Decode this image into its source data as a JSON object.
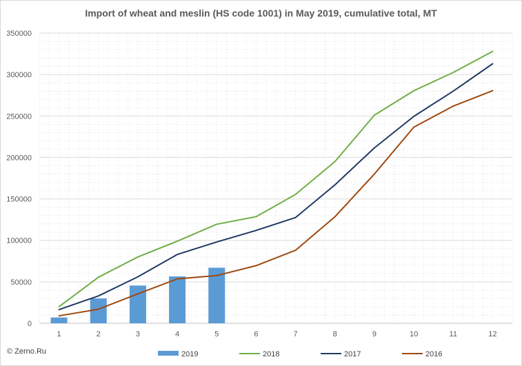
{
  "chart_data": {
    "type": "bar+line",
    "title": "Import of wheat and meslin (HS code 1001) in May 2019, cumulative total, MT",
    "categories": [
      "1",
      "2",
      "3",
      "4",
      "5",
      "6",
      "7",
      "8",
      "9",
      "10",
      "11",
      "12"
    ],
    "ylim": [
      0,
      350000
    ],
    "y_ticks": [
      "0",
      "50000",
      "100000",
      "150000",
      "200000",
      "250000",
      "300000",
      "350000"
    ],
    "grid": true,
    "legend_position": "bottom",
    "series": [
      {
        "name": "2019",
        "kind": "bar",
        "color": "#5b9bd5",
        "values": [
          7000,
          30000,
          45500,
          56500,
          67000,
          null,
          null,
          null,
          null,
          null,
          null,
          null
        ]
      },
      {
        "name": "2018",
        "kind": "line",
        "color": "#70ad47",
        "values": [
          20000,
          55500,
          80000,
          99000,
          119500,
          128500,
          155500,
          195000,
          251000,
          280500,
          302500,
          328000
        ]
      },
      {
        "name": "2017",
        "kind": "line",
        "color": "#203864",
        "values": [
          16500,
          33000,
          56000,
          83000,
          98000,
          112000,
          127500,
          167000,
          211500,
          249500,
          280000,
          313000
        ]
      },
      {
        "name": "2016",
        "kind": "line",
        "color": "#9e480e",
        "values": [
          9000,
          17000,
          35500,
          53500,
          57500,
          69500,
          88000,
          128500,
          180000,
          236500,
          262000,
          280500
        ]
      }
    ]
  },
  "footer": {
    "copyright": "© Zerno.Ru"
  }
}
